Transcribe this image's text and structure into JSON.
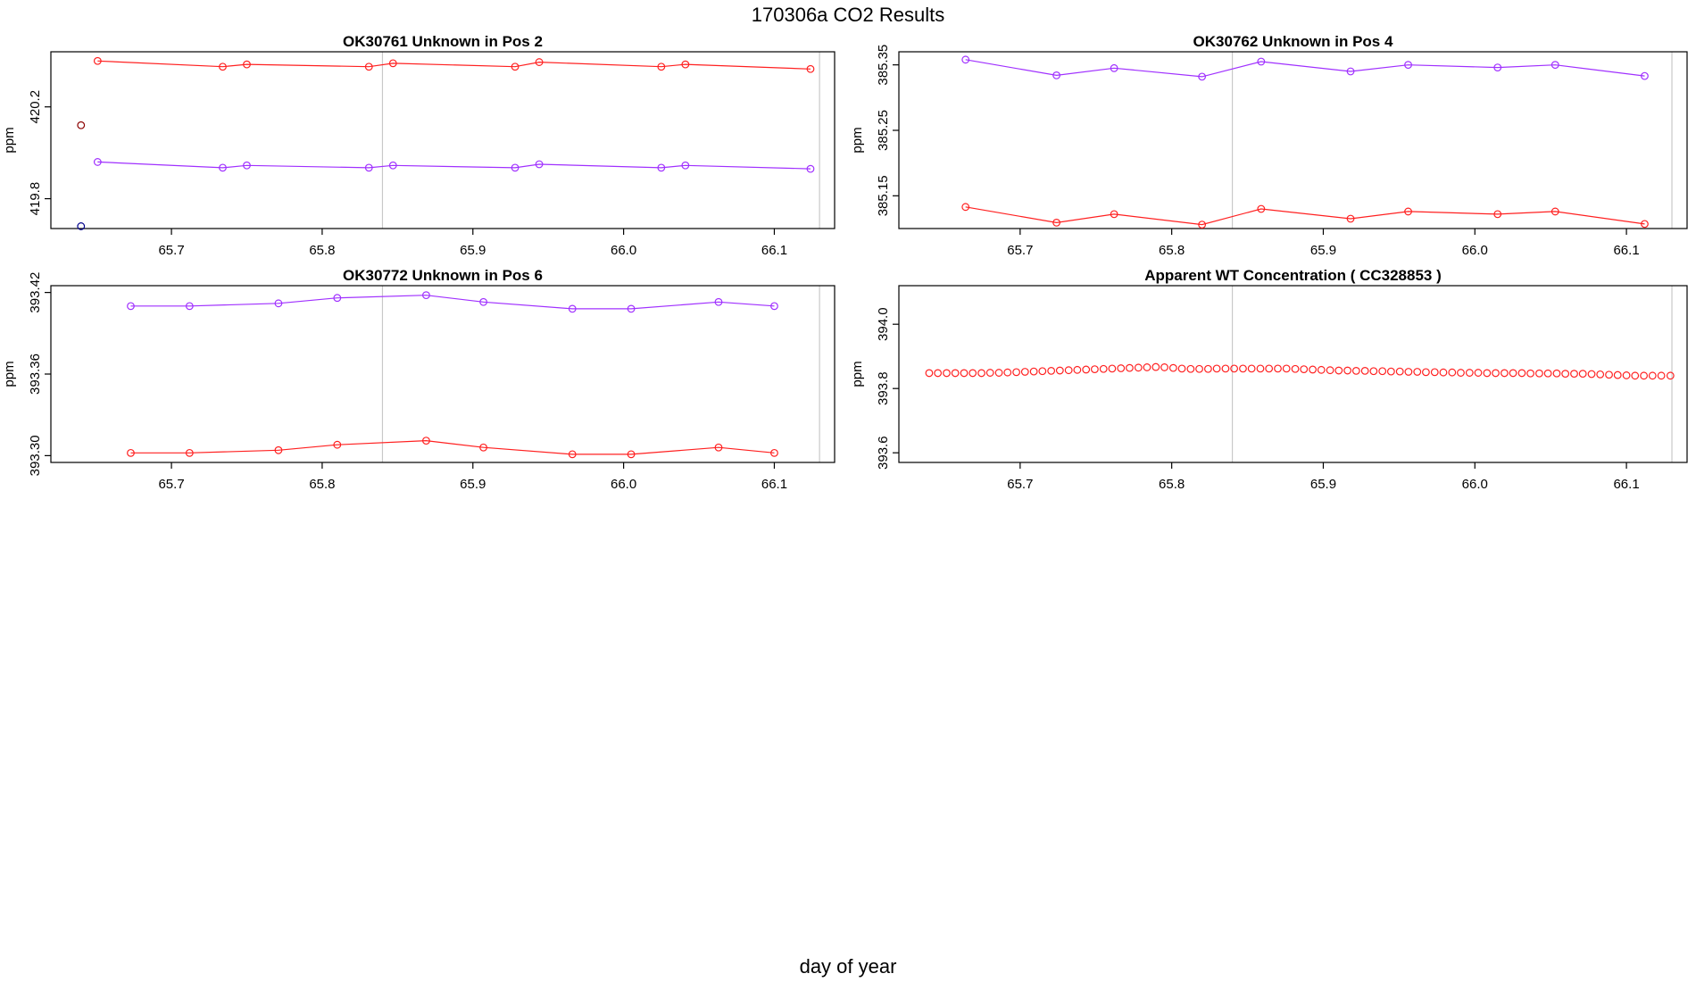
{
  "title": "170306a  CO2 Results",
  "xlabel": "day of year",
  "chart_data": [
    {
      "type": "line",
      "title": "OK30761    Unknown in Pos 2",
      "ylabel": "ppm",
      "xlim": [
        65.62,
        66.14
      ],
      "ylim": [
        419.67,
        420.44
      ],
      "xticks": [
        65.7,
        65.8,
        65.9,
        66.0,
        66.1
      ],
      "xtick_labels": [
        "65.7",
        "65.8",
        "65.9",
        "66.0",
        "66.1"
      ],
      "yticks": [
        419.8,
        420.2
      ],
      "ytick_labels": [
        "419.8",
        "420.2"
      ],
      "vlines": [
        65.84,
        66.13
      ],
      "series": [
        {
          "name": "red",
          "color": "#ff2020",
          "line": true,
          "x": [
            65.651,
            65.734,
            65.75,
            65.831,
            65.847,
            65.928,
            65.944,
            66.025,
            66.041,
            66.124
          ],
          "y": [
            420.4,
            420.375,
            420.385,
            420.375,
            420.39,
            420.375,
            420.395,
            420.375,
            420.385,
            420.365
          ]
        },
        {
          "name": "purple",
          "color": "#a030ff",
          "line": true,
          "x": [
            65.651,
            65.734,
            65.75,
            65.831,
            65.847,
            65.928,
            65.944,
            66.025,
            66.041,
            66.124
          ],
          "y": [
            419.96,
            419.935,
            419.945,
            419.935,
            419.945,
            419.935,
            419.95,
            419.935,
            419.945,
            419.93
          ]
        },
        {
          "name": "calibration-high",
          "color": "#8b0000",
          "line": false,
          "x": [
            65.64
          ],
          "y": [
            420.12
          ]
        },
        {
          "name": "calibration-low",
          "color": "#00008b",
          "line": false,
          "x": [
            65.64
          ],
          "y": [
            419.68
          ]
        }
      ]
    },
    {
      "type": "line",
      "title": "OK30762    Unknown in Pos 4",
      "ylabel": "ppm",
      "xlim": [
        65.62,
        66.14
      ],
      "ylim": [
        385.1,
        385.37
      ],
      "xticks": [
        65.7,
        65.8,
        65.9,
        66.0,
        66.1
      ],
      "xtick_labels": [
        "65.7",
        "65.8",
        "65.9",
        "66.0",
        "66.1"
      ],
      "yticks": [
        385.15,
        385.25,
        385.35
      ],
      "ytick_labels": [
        "385.15",
        "385.25",
        "385.35"
      ],
      "vlines": [
        65.84,
        66.13
      ],
      "series": [
        {
          "name": "purple",
          "color": "#a030ff",
          "line": true,
          "x": [
            65.664,
            65.724,
            65.762,
            65.82,
            65.859,
            65.918,
            65.956,
            66.015,
            66.053,
            66.112
          ],
          "y": [
            385.358,
            385.334,
            385.345,
            385.332,
            385.355,
            385.34,
            385.35,
            385.346,
            385.35,
            385.333
          ]
        },
        {
          "name": "red",
          "color": "#ff2020",
          "line": true,
          "x": [
            65.664,
            65.724,
            65.762,
            65.82,
            65.859,
            65.918,
            65.956,
            66.015,
            66.053,
            66.112
          ],
          "y": [
            385.133,
            385.109,
            385.122,
            385.106,
            385.13,
            385.115,
            385.126,
            385.122,
            385.126,
            385.107
          ]
        }
      ]
    },
    {
      "type": "line",
      "title": "OK30772    Unknown in Pos 6",
      "ylabel": "ppm",
      "xlim": [
        65.62,
        66.14
      ],
      "ylim": [
        393.295,
        393.425
      ],
      "xticks": [
        65.7,
        65.8,
        65.9,
        66.0,
        66.1
      ],
      "xtick_labels": [
        "65.7",
        "65.8",
        "65.9",
        "66.0",
        "66.1"
      ],
      "yticks": [
        393.3,
        393.36,
        393.42
      ],
      "ytick_labels": [
        "393.30",
        "393.36",
        "393.42"
      ],
      "vlines": [
        65.84,
        66.13
      ],
      "series": [
        {
          "name": "purple",
          "color": "#a030ff",
          "line": true,
          "x": [
            65.673,
            65.712,
            65.771,
            65.81,
            65.869,
            65.907,
            65.966,
            66.005,
            66.063,
            66.1
          ],
          "y": [
            393.41,
            393.41,
            393.412,
            393.416,
            393.418,
            393.413,
            393.408,
            393.408,
            393.413,
            393.41
          ]
        },
        {
          "name": "red",
          "color": "#ff2020",
          "line": true,
          "x": [
            65.673,
            65.712,
            65.771,
            65.81,
            65.869,
            65.907,
            65.966,
            66.005,
            66.063,
            66.1
          ],
          "y": [
            393.302,
            393.302,
            393.304,
            393.308,
            393.311,
            393.306,
            393.301,
            393.301,
            393.306,
            393.302
          ]
        }
      ]
    },
    {
      "type": "scatter",
      "title": "Apparent WT Concentration ( CC328853 )",
      "ylabel": "ppm",
      "xlim": [
        65.62,
        66.14
      ],
      "ylim": [
        393.57,
        394.12
      ],
      "xticks": [
        65.7,
        65.8,
        65.9,
        66.0,
        66.1
      ],
      "xtick_labels": [
        "65.7",
        "65.8",
        "65.9",
        "66.0",
        "66.1"
      ],
      "yticks": [
        393.6,
        393.8,
        394.0
      ],
      "ytick_labels": [
        "393.6",
        "393.8",
        "394.0"
      ],
      "vlines": [
        65.84,
        66.13
      ],
      "series": [
        {
          "name": "red",
          "color": "#ff2020",
          "line": false,
          "x": [
            65.64,
            65.6457,
            65.6515,
            65.6572,
            65.663,
            65.6687,
            65.6745,
            65.6802,
            65.686,
            65.6917,
            65.6975,
            65.7032,
            65.709,
            65.7147,
            65.7205,
            65.7262,
            65.732,
            65.7377,
            65.7435,
            65.7492,
            65.755,
            65.7607,
            65.7665,
            65.7722,
            65.778,
            65.7837,
            65.7895,
            65.7952,
            65.801,
            65.8067,
            65.8125,
            65.8182,
            65.824,
            65.8297,
            65.8355,
            65.8412,
            65.847,
            65.8527,
            65.8585,
            65.8642,
            65.87,
            65.8757,
            65.8815,
            65.8872,
            65.893,
            65.8987,
            65.9045,
            65.9102,
            65.916,
            65.9217,
            65.9275,
            65.9332,
            65.939,
            65.9447,
            65.9505,
            65.9562,
            65.962,
            65.9677,
            65.9735,
            65.9792,
            65.985,
            65.9907,
            65.9965,
            66.0022,
            66.008,
            66.0137,
            66.0195,
            66.0252,
            66.031,
            66.0367,
            66.0425,
            66.0482,
            66.054,
            66.0597,
            66.0655,
            66.0712,
            66.077,
            66.0827,
            66.0885,
            66.0942,
            66.1,
            66.1057,
            66.1115,
            66.1172,
            66.123,
            66.129
          ],
          "y": [
            393.848,
            393.848,
            393.848,
            393.848,
            393.848,
            393.848,
            393.848,
            393.849,
            393.849,
            393.85,
            393.851,
            393.852,
            393.853,
            393.854,
            393.855,
            393.856,
            393.857,
            393.858,
            393.859,
            393.86,
            393.861,
            393.862,
            393.863,
            393.864,
            393.865,
            393.866,
            393.867,
            393.866,
            393.864,
            393.862,
            393.861,
            393.861,
            393.861,
            393.862,
            393.862,
            393.862,
            393.862,
            393.862,
            393.862,
            393.862,
            393.862,
            393.862,
            393.861,
            393.86,
            393.859,
            393.858,
            393.857,
            393.856,
            393.856,
            393.855,
            393.855,
            393.854,
            393.854,
            393.853,
            393.853,
            393.852,
            393.852,
            393.851,
            393.851,
            393.85,
            393.85,
            393.849,
            393.849,
            393.849,
            393.848,
            393.848,
            393.848,
            393.848,
            393.848,
            393.847,
            393.847,
            393.847,
            393.847,
            393.846,
            393.846,
            393.846,
            393.845,
            393.844,
            393.843,
            393.842,
            393.841,
            393.84,
            393.84,
            393.84,
            393.84,
            393.84
          ]
        }
      ]
    }
  ]
}
